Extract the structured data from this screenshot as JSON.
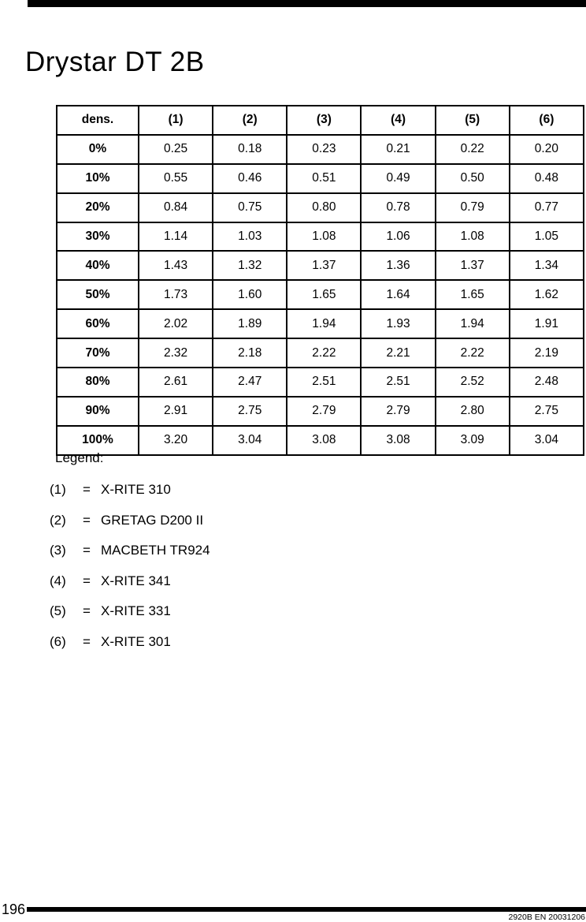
{
  "page": {
    "title": "Drystar DT 2B"
  },
  "colors": {
    "text": "#000000",
    "background": "#ffffff",
    "rule": "#000000"
  },
  "table": {
    "headers": [
      "dens.",
      "(1)",
      "(2)",
      "(3)",
      "(4)",
      "(5)",
      "(6)"
    ],
    "rows": [
      {
        "label": "0%",
        "values": [
          "0.25",
          "0.18",
          "0.23",
          "0.21",
          "0.22",
          "0.20"
        ]
      },
      {
        "label": "10%",
        "values": [
          "0.55",
          "0.46",
          "0.51",
          "0.49",
          "0.50",
          "0.48"
        ]
      },
      {
        "label": "20%",
        "values": [
          "0.84",
          "0.75",
          "0.80",
          "0.78",
          "0.79",
          "0.77"
        ]
      },
      {
        "label": "30%",
        "values": [
          "1.14",
          "1.03",
          "1.08",
          "1.06",
          "1.08",
          "1.05"
        ]
      },
      {
        "label": "40%",
        "values": [
          "1.43",
          "1.32",
          "1.37",
          "1.36",
          "1.37",
          "1.34"
        ]
      },
      {
        "label": "50%",
        "values": [
          "1.73",
          "1.60",
          "1.65",
          "1.64",
          "1.65",
          "1.62"
        ]
      },
      {
        "label": "60%",
        "values": [
          "2.02",
          "1.89",
          "1.94",
          "1.93",
          "1.94",
          "1.91"
        ]
      },
      {
        "label": "70%",
        "values": [
          "2.32",
          "2.18",
          "2.22",
          "2.21",
          "2.22",
          "2.19"
        ]
      },
      {
        "label": "80%",
        "values": [
          "2.61",
          "2.47",
          "2.51",
          "2.51",
          "2.52",
          "2.48"
        ]
      },
      {
        "label": "90%",
        "values": [
          "2.91",
          "2.75",
          "2.79",
          "2.79",
          "2.80",
          "2.75"
        ]
      },
      {
        "label": "100%",
        "values": [
          "3.20",
          "3.04",
          "3.08",
          "3.08",
          "3.09",
          "3.04"
        ]
      }
    ]
  },
  "legend": {
    "heading": "Legend:",
    "items": [
      {
        "key": "(1)",
        "eq": "=",
        "value": "X-RITE 310"
      },
      {
        "key": "(2)",
        "eq": "=",
        "value": "GRETAG D200 II"
      },
      {
        "key": "(3)",
        "eq": "=",
        "value": "MACBETH TR924"
      },
      {
        "key": "(4)",
        "eq": "=",
        "value": "X-RITE 341"
      },
      {
        "key": "(5)",
        "eq": "=",
        "value": "X-RITE 331"
      },
      {
        "key": "(6)",
        "eq": "=",
        "value": "X-RITE 301"
      }
    ]
  },
  "footer": {
    "page_number": "196",
    "doc_code": "2920B EN 20031206"
  }
}
